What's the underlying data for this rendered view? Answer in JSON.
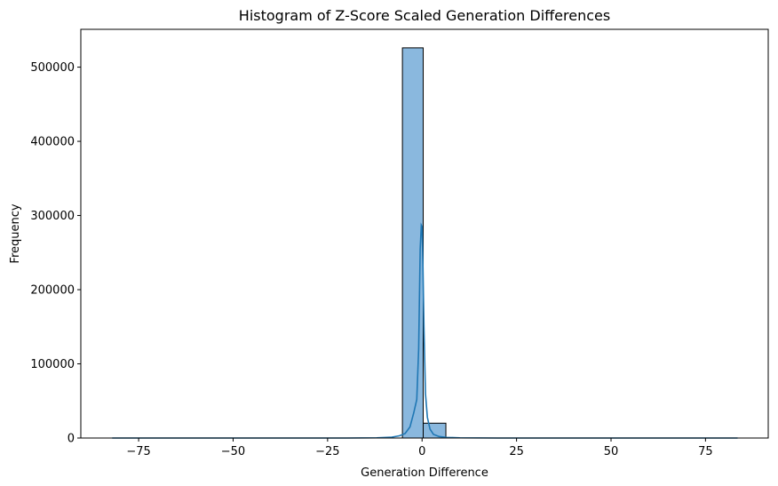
{
  "chart_data": {
    "type": "bar",
    "title": "Histogram of Z-Score Scaled Generation Differences",
    "xlabel": "Generation Difference",
    "ylabel": "Frequency",
    "xlim": [
      -90.3,
      91.6
    ],
    "ylim": [
      0,
      551000
    ],
    "xticks": [
      -75,
      -50,
      -25,
      0,
      25,
      50,
      75
    ],
    "xtick_labels": [
      "−75",
      "−50",
      "−25",
      "0",
      "25",
      "50",
      "75"
    ],
    "yticks": [
      0,
      100000,
      200000,
      300000,
      400000,
      500000
    ],
    "ytick_labels": [
      "0",
      "100000",
      "200000",
      "300000",
      "400000",
      "500000"
    ],
    "grid": false,
    "bins": [
      {
        "x0": -5.2,
        "x1": 0.3,
        "count": 526000
      },
      {
        "x0": 0.3,
        "x1": 6.3,
        "count": 20000
      }
    ],
    "series": [
      {
        "type": "kde",
        "x": [
          -82,
          -40,
          -20,
          -12,
          -8,
          -6,
          -4.5,
          -3.2,
          -2.2,
          -1.4,
          -0.9,
          -0.5,
          -0.2,
          0.0,
          0.2,
          0.5,
          0.9,
          1.4,
          2.1,
          3.0,
          4.5,
          6.5,
          10,
          20,
          40,
          83.5
        ],
        "y": [
          0,
          0,
          0,
          300,
          1200,
          3000,
          6000,
          15000,
          34000,
          52000,
          120000,
          255000,
          287000,
          285000,
          240000,
          150000,
          60000,
          28000,
          12000,
          5000,
          2000,
          800,
          300,
          0,
          0,
          0
        ]
      }
    ],
    "colors": {
      "bar_fill": "#8ab8de",
      "bar_edge": "#000000",
      "kde_line": "#1f77b4"
    }
  }
}
